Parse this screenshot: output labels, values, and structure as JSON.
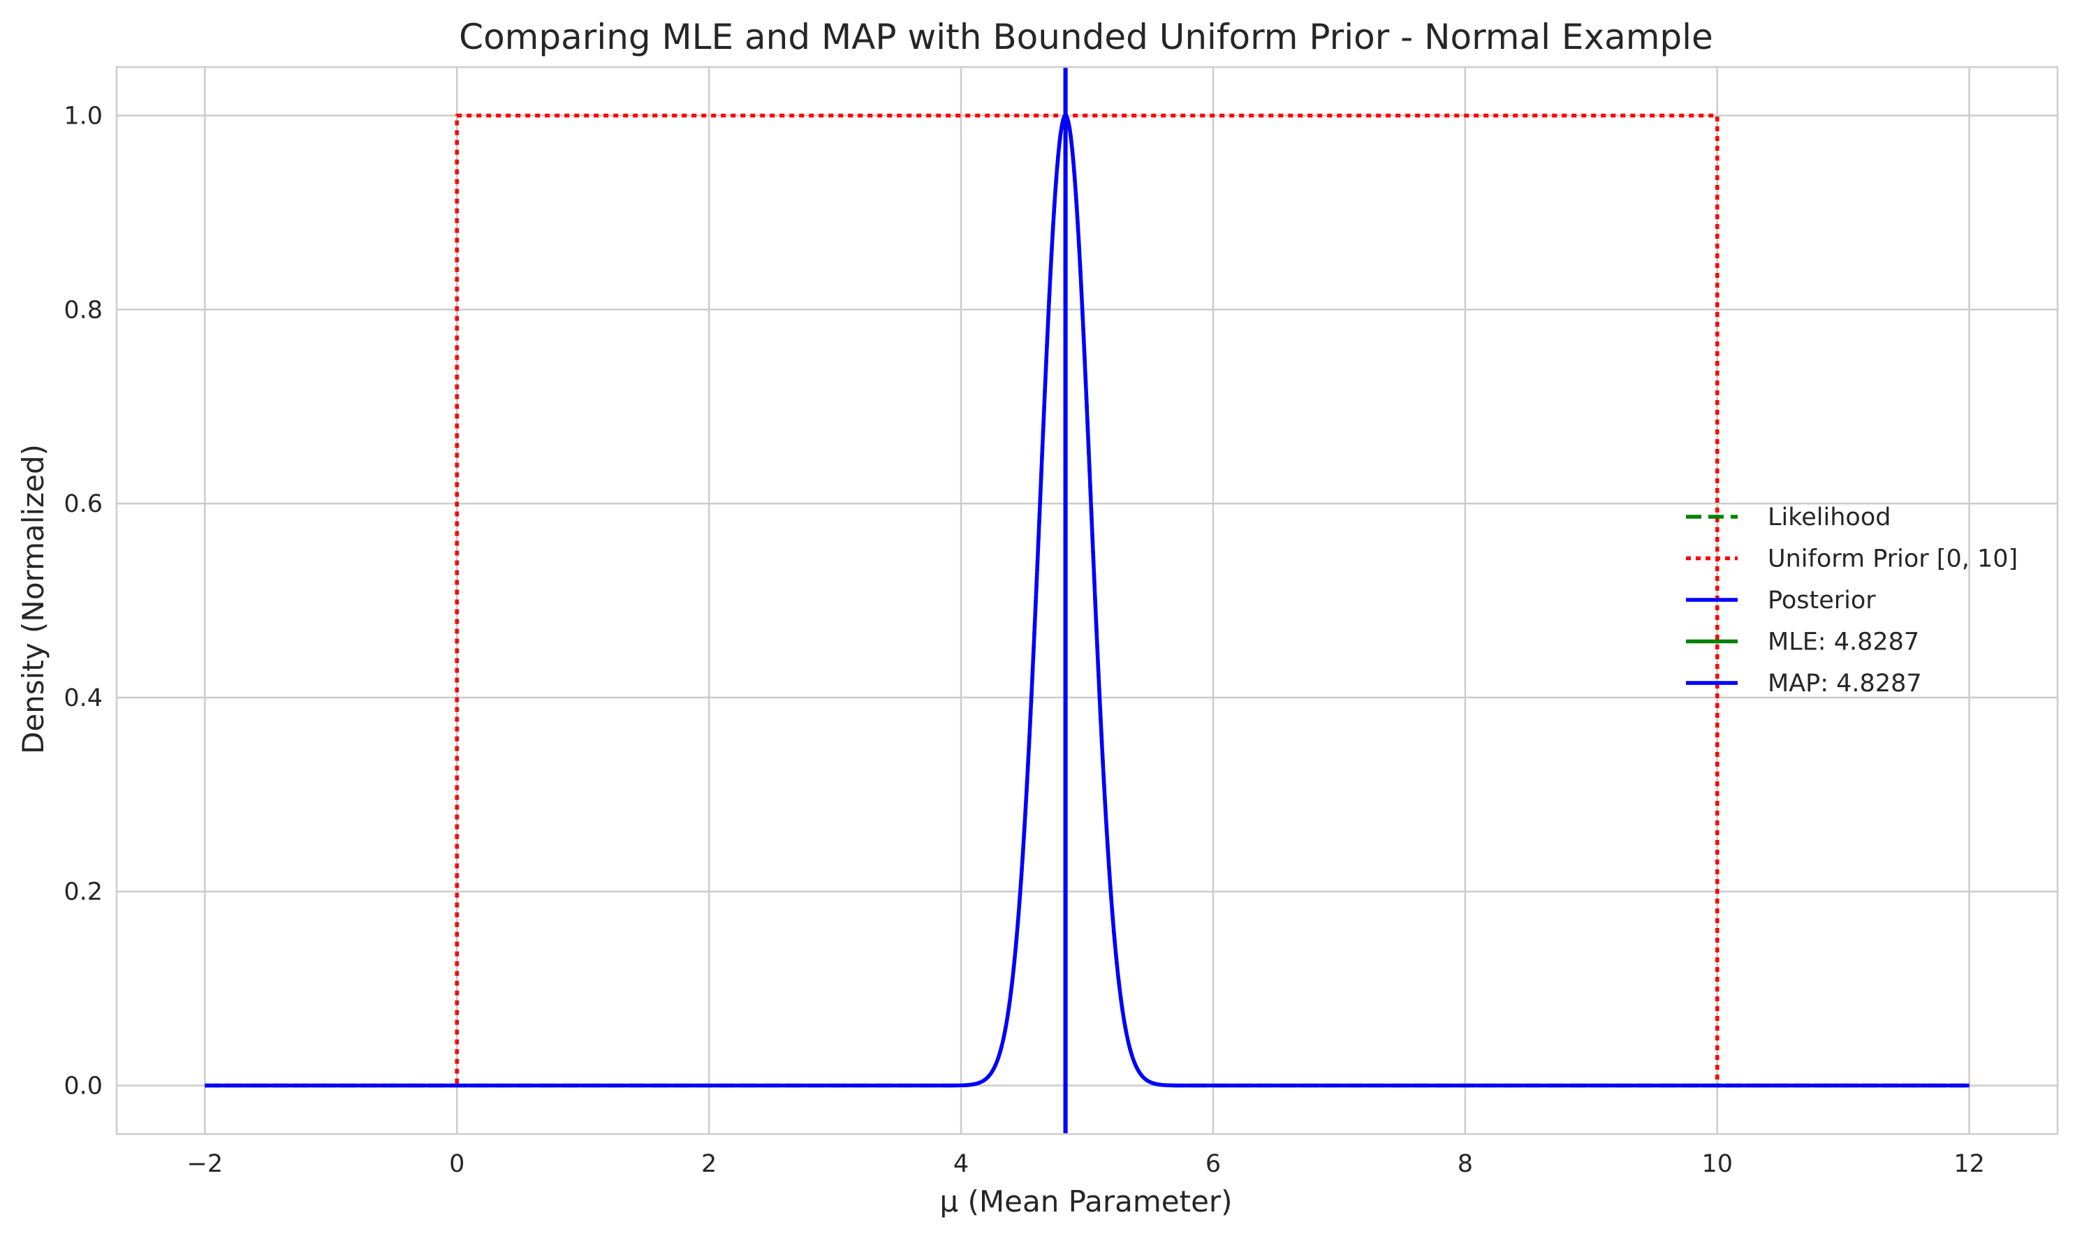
{
  "chart_data": {
    "type": "line",
    "title": "Comparing MLE and MAP with Bounded Uniform Prior - Normal Example",
    "xlabel": "μ (Mean Parameter)",
    "ylabel": "Density (Normalized)",
    "xlim": [
      -2.7,
      12.7
    ],
    "ylim": [
      -0.05,
      1.05
    ],
    "xticks": [
      -2,
      0,
      2,
      4,
      6,
      8,
      10,
      12
    ],
    "xtick_labels": [
      "−2",
      "0",
      "2",
      "4",
      "6",
      "8",
      "10",
      "12"
    ],
    "yticks": [
      0.0,
      0.2,
      0.4,
      0.6,
      0.8,
      1.0
    ],
    "ytick_labels": [
      "0.0",
      "0.2",
      "0.4",
      "0.6",
      "0.8",
      "1.0"
    ],
    "grid": true,
    "legend_position": "center-right",
    "series": [
      {
        "name": "Likelihood",
        "kind": "normal-curve",
        "mean": 4.8287,
        "sd": 0.2,
        "x_range": [
          -2,
          12
        ],
        "peak": 1.0,
        "color": "#008000",
        "style": "dashed"
      },
      {
        "name": "Uniform Prior [0, 10]",
        "kind": "step",
        "points": [
          [
            -2,
            0
          ],
          [
            0,
            0
          ],
          [
            0,
            1
          ],
          [
            10,
            1
          ],
          [
            10,
            0
          ],
          [
            12,
            0
          ]
        ],
        "color": "#ff0000",
        "style": "dotted"
      },
      {
        "name": "Posterior",
        "kind": "normal-curve",
        "mean": 4.8287,
        "sd": 0.2,
        "x_range": [
          -2,
          12
        ],
        "peak": 1.0,
        "color": "#0000ff",
        "style": "solid"
      },
      {
        "name": "MLE: 4.8287",
        "kind": "vline",
        "x": 4.8287,
        "color": "#008000",
        "style": "solid"
      },
      {
        "name": "MAP: 4.8287",
        "kind": "vline",
        "x": 4.8287,
        "color": "#0000ff",
        "style": "solid"
      }
    ]
  }
}
